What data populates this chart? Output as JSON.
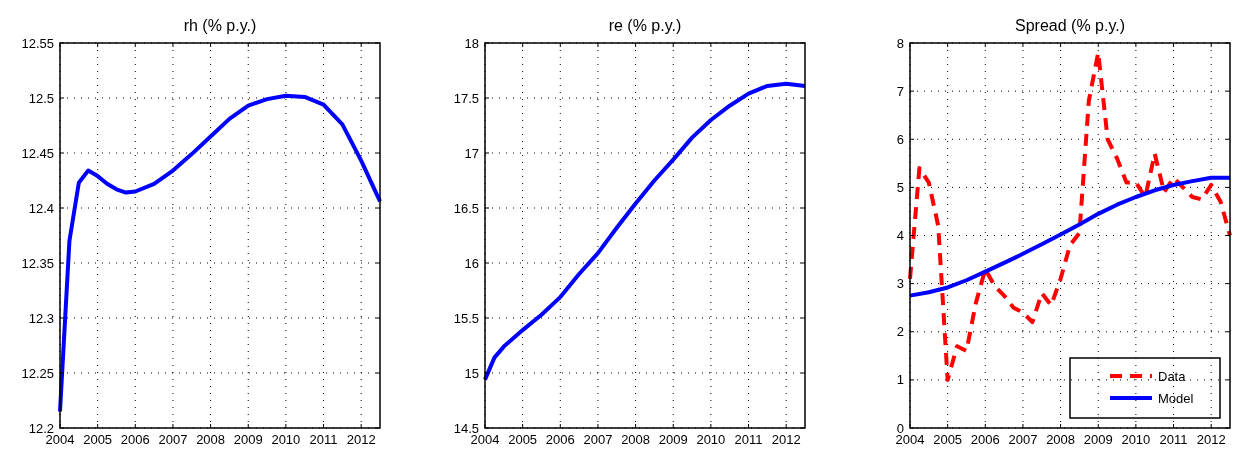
{
  "chart_data": [
    {
      "type": "line",
      "title": "rh (% p.y.)",
      "xlim": [
        2004,
        2012.5
      ],
      "xticks": [
        2004,
        2005,
        2006,
        2007,
        2008,
        2009,
        2010,
        2011,
        2012
      ],
      "ylim": [
        12.2,
        12.55
      ],
      "yticks": [
        12.2,
        12.25,
        12.3,
        12.35,
        12.4,
        12.45,
        12.5,
        12.55
      ],
      "grid": true,
      "line_style": "solid",
      "series": [
        {
          "color": "#0000ff",
          "x": [
            2004,
            2004.25,
            2004.5,
            2004.75,
            2005,
            2005.25,
            2005.5,
            2005.75,
            2006,
            2006.5,
            2007,
            2007.5,
            2008,
            2008.5,
            2009,
            2009.5,
            2010,
            2010.5,
            2011,
            2011.5,
            2012,
            2012.5
          ],
          "values": [
            12.215,
            12.37,
            12.423,
            12.434,
            12.429,
            12.422,
            12.417,
            12.414,
            12.415,
            12.422,
            12.434,
            12.449,
            12.465,
            12.481,
            12.493,
            12.499,
            12.502,
            12.501,
            12.494,
            12.476,
            12.443,
            12.406
          ]
        }
      ]
    },
    {
      "type": "line",
      "title": "re (% p.y.)",
      "xlim": [
        2004,
        2012.5
      ],
      "xticks": [
        2004,
        2005,
        2006,
        2007,
        2008,
        2009,
        2010,
        2011,
        2012
      ],
      "ylim": [
        14.5,
        18
      ],
      "yticks": [
        14.5,
        15,
        15.5,
        16,
        16.5,
        17,
        17.5,
        18
      ],
      "grid": true,
      "line_style": "solid",
      "series": [
        {
          "color": "#0000ff",
          "x": [
            2004,
            2004.25,
            2004.5,
            2005,
            2005.5,
            2006,
            2006.5,
            2007,
            2007.5,
            2008,
            2008.5,
            2009,
            2009.5,
            2010,
            2010.5,
            2011,
            2011.5,
            2012,
            2012.5
          ],
          "values": [
            14.94,
            15.14,
            15.24,
            15.39,
            15.53,
            15.69,
            15.9,
            16.09,
            16.32,
            16.54,
            16.75,
            16.94,
            17.14,
            17.3,
            17.43,
            17.54,
            17.61,
            17.63,
            17.61
          ]
        }
      ]
    },
    {
      "type": "line",
      "title": "Spread (% p.y.)",
      "xlim": [
        2004,
        2012.5
      ],
      "xticks": [
        2004,
        2005,
        2006,
        2007,
        2008,
        2009,
        2010,
        2011,
        2012
      ],
      "ylim": [
        0,
        8
      ],
      "yticks": [
        0,
        1,
        2,
        3,
        4,
        5,
        6,
        7,
        8
      ],
      "grid": true,
      "legend": "bottom right",
      "series": [
        {
          "name": "Data",
          "color": "#ff0000",
          "line_style": "dashed",
          "x": [
            2004,
            2004.25,
            2004.5,
            2004.75,
            2005,
            2005.25,
            2005.5,
            2005.75,
            2006,
            2006.25,
            2006.5,
            2006.75,
            2007,
            2007.25,
            2007.5,
            2007.75,
            2008,
            2008.25,
            2008.5,
            2008.75,
            2009,
            2009.25,
            2009.5,
            2009.75,
            2010,
            2010.25,
            2010.5,
            2010.75,
            2011,
            2011.25,
            2011.5,
            2011.75,
            2012,
            2012.25,
            2012.5
          ],
          "values": [
            3.1,
            5.4,
            5.1,
            4.2,
            1.0,
            1.7,
            1.6,
            2.6,
            3.3,
            2.95,
            2.75,
            2.5,
            2.4,
            2.2,
            2.8,
            2.55,
            3.1,
            3.8,
            4.05,
            6.8,
            7.8,
            6.0,
            5.6,
            5.1,
            5.1,
            4.8,
            5.7,
            4.9,
            5.2,
            5.0,
            4.8,
            4.75,
            5.05,
            4.7,
            4.0
          ]
        },
        {
          "name": "Model",
          "color": "#0000ff",
          "line_style": "solid",
          "x": [
            2004,
            2004.5,
            2005,
            2005.5,
            2006,
            2006.5,
            2007,
            2007.5,
            2008,
            2008.5,
            2009,
            2009.5,
            2010,
            2010.5,
            2011,
            2011.5,
            2012,
            2012.5
          ],
          "values": [
            2.75,
            2.82,
            2.92,
            3.07,
            3.25,
            3.43,
            3.62,
            3.82,
            4.02,
            4.23,
            4.45,
            4.64,
            4.8,
            4.94,
            5.05,
            5.13,
            5.2,
            5.2
          ]
        }
      ]
    }
  ]
}
